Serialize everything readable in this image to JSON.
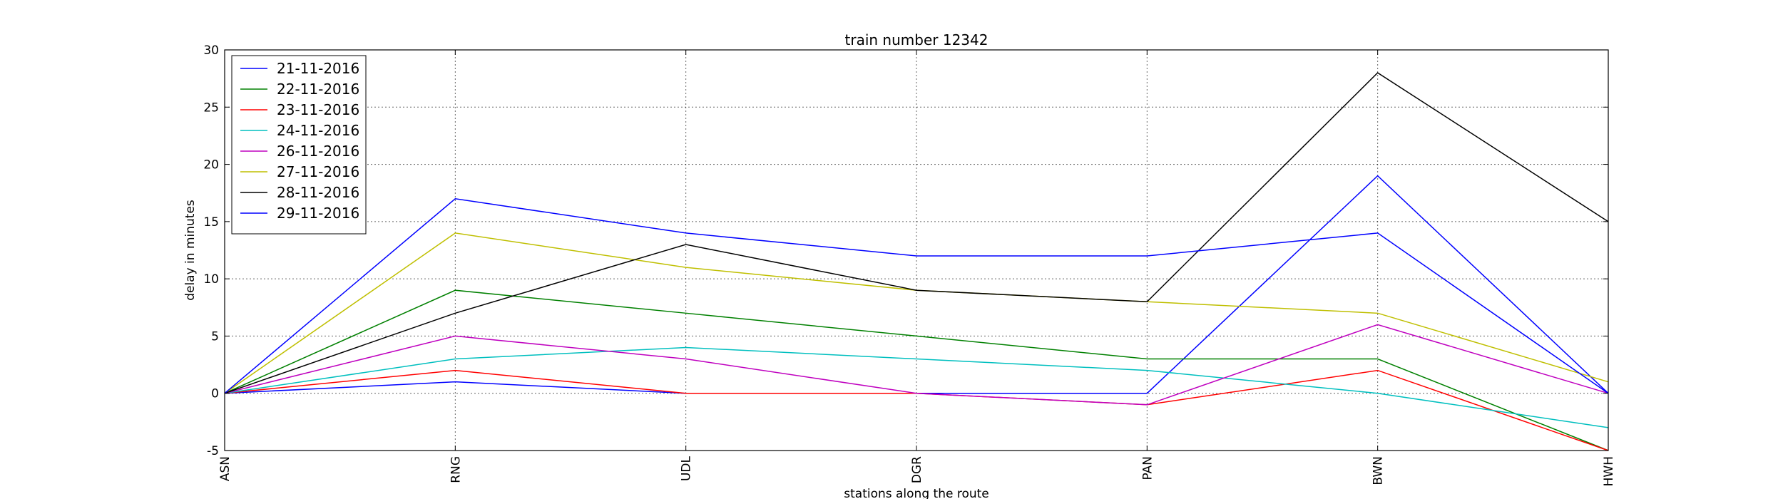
{
  "chart_data": {
    "type": "line",
    "title": "train number 12342",
    "xlabel": "stations along the route",
    "ylabel": "delay in minutes",
    "categories": [
      "ASN",
      "RNG",
      "UDL",
      "DGR",
      "PAN",
      "BWN",
      "HWH"
    ],
    "ylim": [
      -5,
      30
    ],
    "yticks": [
      -5,
      0,
      5,
      10,
      15,
      20,
      25,
      30
    ],
    "grid": true,
    "legend_position": "upper-left",
    "series": [
      {
        "name": "21-11-2016",
        "color": "#0000ff",
        "values": [
          0,
          1,
          0,
          0,
          0,
          19,
          0
        ]
      },
      {
        "name": "22-11-2016",
        "color": "#008000",
        "values": [
          0,
          9,
          7,
          5,
          3,
          3,
          -5
        ]
      },
      {
        "name": "23-11-2016",
        "color": "#ff0000",
        "values": [
          0,
          2,
          0,
          0,
          -1,
          2,
          -5
        ]
      },
      {
        "name": "24-11-2016",
        "color": "#00bfbf",
        "values": [
          0,
          3,
          4,
          3,
          2,
          0,
          -3
        ]
      },
      {
        "name": "26-11-2016",
        "color": "#bf00bf",
        "values": [
          0,
          5,
          3,
          0,
          -1,
          6,
          0
        ]
      },
      {
        "name": "27-11-2016",
        "color": "#bfbf00",
        "values": [
          0,
          14,
          11,
          9,
          8,
          7,
          1
        ]
      },
      {
        "name": "28-11-2016",
        "color": "#000000",
        "values": [
          0,
          7,
          13,
          9,
          8,
          28,
          15
        ]
      },
      {
        "name": "29-11-2016",
        "color": "#0000ff",
        "values": [
          0,
          17,
          14,
          12,
          12,
          14,
          0
        ]
      }
    ]
  }
}
